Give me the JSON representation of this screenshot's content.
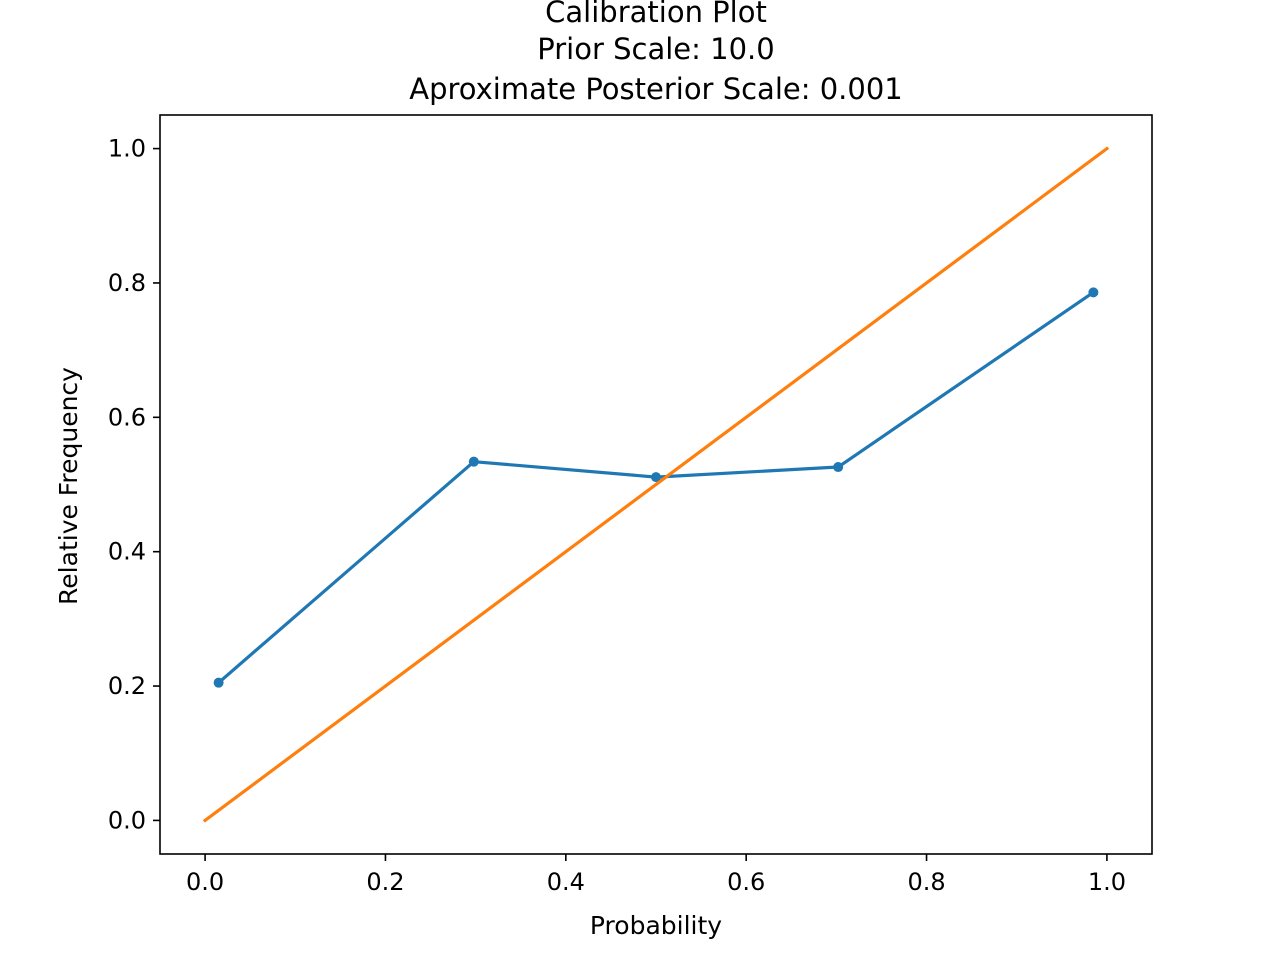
{
  "chart_data": {
    "type": "line",
    "title_lines": [
      "Calibration Plot",
      "Prior Scale: 10.0",
      "Aproximate Posterior Scale: 0.001"
    ],
    "xlabel": "Probability",
    "ylabel": "Relative Frequency",
    "xlim": [
      -0.05,
      1.05
    ],
    "ylim": [
      -0.05,
      1.05
    ],
    "xticks": [
      "0.0",
      "0.2",
      "0.4",
      "0.6",
      "0.8",
      "1.0"
    ],
    "yticks": [
      "0.0",
      "0.2",
      "0.4",
      "0.6",
      "0.8",
      "1.0"
    ],
    "grid": false,
    "legend": "none",
    "series": [
      {
        "color": "#1f77b4",
        "markers": true,
        "x": [
          0.015,
          0.298,
          0.5,
          0.702,
          0.985
        ],
        "y": [
          0.205,
          0.534,
          0.511,
          0.526,
          0.786
        ]
      },
      {
        "color": "#ff7f0e",
        "markers": false,
        "x": [
          0.0,
          1.0
        ],
        "y": [
          0.0,
          1.0
        ]
      }
    ]
  }
}
